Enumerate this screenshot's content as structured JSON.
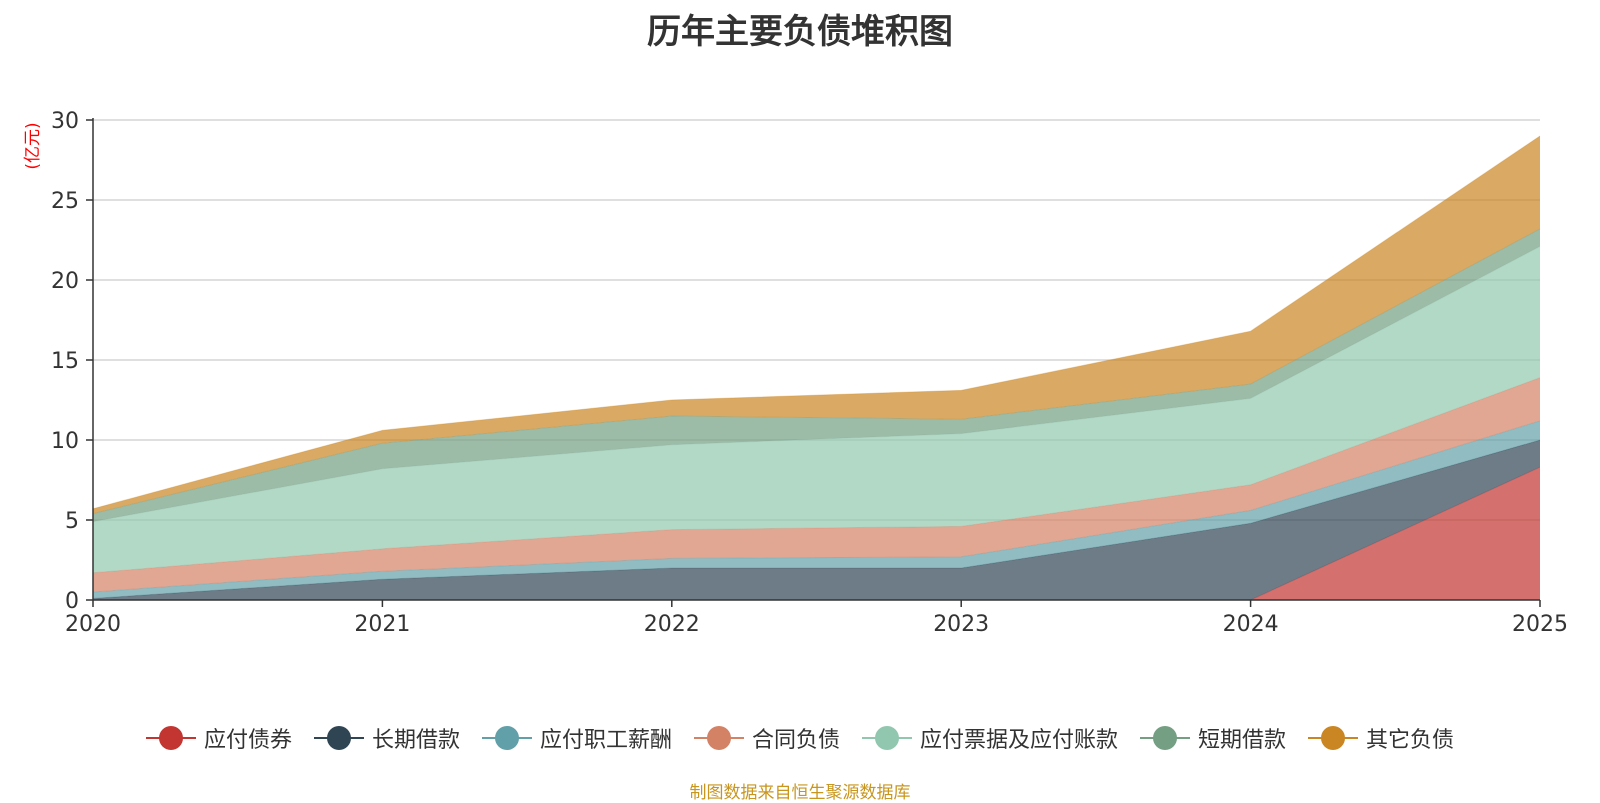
{
  "chart_data": {
    "type": "area",
    "stacked": true,
    "title": "历年主要负债堆积图",
    "ylabel": "(亿元)",
    "xlabel": "",
    "x": [
      "2020",
      "2021",
      "2022",
      "2023",
      "2024",
      "2025"
    ],
    "ylim": [
      0,
      30
    ],
    "yticks": [
      0,
      5,
      10,
      15,
      20,
      25,
      30
    ],
    "grid": true,
    "legend_position": "bottom",
    "series": [
      {
        "name": "应付债券",
        "color": "#c23531",
        "values": [
          0,
          0,
          0,
          0,
          0,
          8.3
        ]
      },
      {
        "name": "长期借款",
        "color": "#2f4554",
        "values": [
          0.1,
          1.3,
          2.0,
          2.0,
          4.8,
          1.7
        ]
      },
      {
        "name": "应付职工薪酬",
        "color": "#61a0a8",
        "values": [
          0.4,
          0.5,
          0.6,
          0.7,
          0.8,
          1.2
        ]
      },
      {
        "name": "合同负债",
        "color": "#d48265",
        "values": [
          1.2,
          1.4,
          1.8,
          1.9,
          1.6,
          2.7
        ]
      },
      {
        "name": "应付票据及应付账款",
        "color": "#91c7ae",
        "values": [
          3.2,
          5.0,
          5.3,
          5.8,
          5.4,
          8.2
        ]
      },
      {
        "name": "短期借款",
        "color": "#749f83",
        "values": [
          0.5,
          1.6,
          1.8,
          0.9,
          0.9,
          1.1
        ]
      },
      {
        "name": "其它负债",
        "color": "#ca8622",
        "values": [
          0.3,
          0.8,
          1.0,
          1.8,
          3.3,
          5.8
        ]
      }
    ]
  },
  "source_note": "制图数据来自恒生聚源数据库",
  "colors": {
    "title": "#333333",
    "ylabel": "#ff0000",
    "source_note": "#c8961e",
    "axis": "#333333",
    "grid": "#cccccc"
  }
}
